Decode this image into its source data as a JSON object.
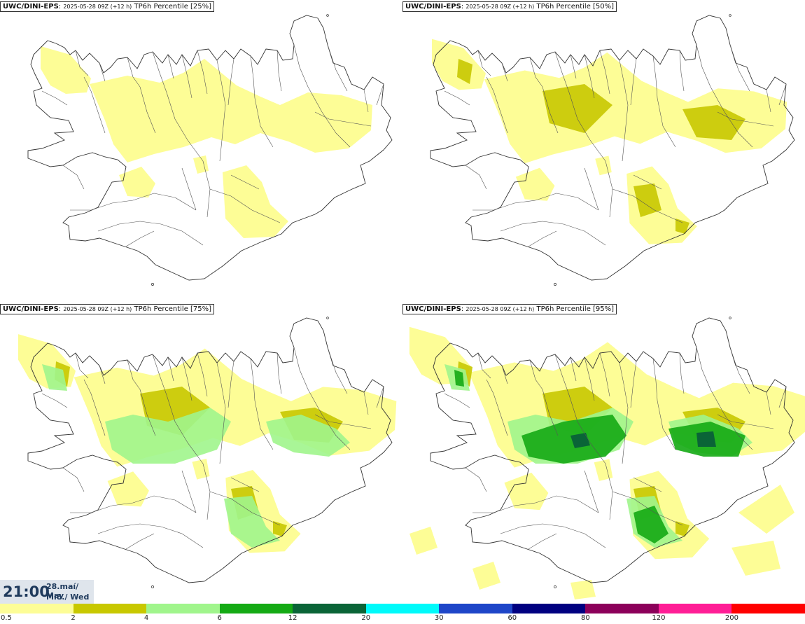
{
  "panels": [
    {
      "source": "UWC/DINI-EPS",
      "date": "2025-05-28 09Z (+12 h)",
      "label": "TP6h Percentile [25%]",
      "level": 1
    },
    {
      "source": "UWC/DINI-EPS",
      "date": "2025-05-28 09Z (+12 h)",
      "label": "TP6h Percentile [50%]",
      "level": 2
    },
    {
      "source": "UWC/DINI-EPS",
      "date": "2025-05-28 09Z (+12 h)",
      "label": "TP6h Percentile [75%]",
      "level": 3
    },
    {
      "source": "UWC/DINI-EPS",
      "date": "2025-05-28 09Z (+12 h)",
      "label": "TP6h Percentile [95%]",
      "level": 4
    }
  ],
  "valid_time": {
    "time": "21:00",
    "date_line": "28.maí/ May",
    "day_line": "Mið./ Wed"
  },
  "legend": {
    "colors": [
      "#fdfd96",
      "#c8c800",
      "#a0f58c",
      "#14aa14",
      "#0a6437",
      "#00fafa",
      "#1e46c8",
      "#000080",
      "#8c005a",
      "#ff1e96",
      "#ff0000"
    ],
    "ticks": [
      "0.5",
      "2",
      "4",
      "6",
      "12",
      "20",
      "30",
      "60",
      "80",
      "120",
      "200"
    ]
  }
}
